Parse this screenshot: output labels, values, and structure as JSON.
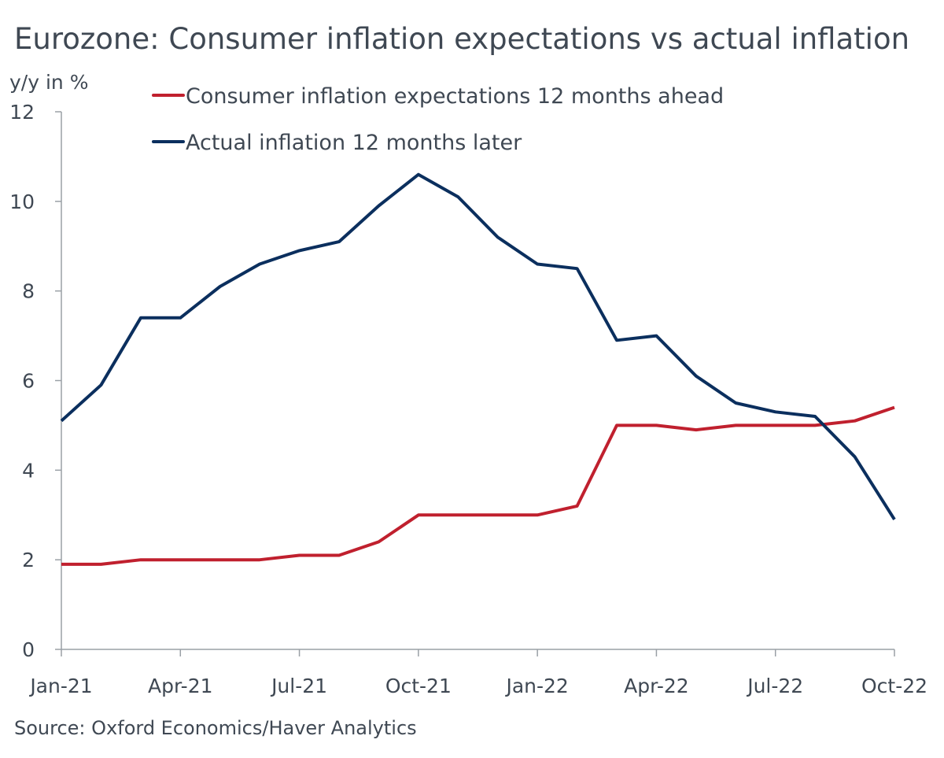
{
  "chart_data": {
    "type": "line",
    "title": "Eurozone: Consumer inflation expectations vs actual inflation",
    "ylabel": "y/y in %",
    "xlabel": "",
    "source": "Source: Oxford Economics/Haver Analytics",
    "ylim": [
      0,
      12
    ],
    "yticks": [
      "0",
      "2",
      "4",
      "6",
      "8",
      "10",
      "12"
    ],
    "x": [
      "Jan-21",
      "Feb-21",
      "Mar-21",
      "Apr-21",
      "May-21",
      "Jun-21",
      "Jul-21",
      "Aug-21",
      "Sep-21",
      "Oct-21",
      "Nov-21",
      "Dec-21",
      "Jan-22",
      "Feb-22",
      "Mar-22",
      "Apr-22",
      "May-22",
      "Jun-22",
      "Jul-22",
      "Aug-22",
      "Sep-22",
      "Oct-22"
    ],
    "xtick_labels": [
      "Jan-21",
      "Apr-21",
      "Jul-21",
      "Oct-21",
      "Jan-22",
      "Apr-22",
      "Jul-22",
      "Oct-22"
    ],
    "grid": false,
    "legend_position": "top-left",
    "series": [
      {
        "name": "Consumer inflation expectations 12 months ahead",
        "color": "#c0202e",
        "values": [
          1.9,
          1.9,
          2.0,
          2.0,
          2.0,
          2.0,
          2.1,
          2.1,
          2.4,
          3.0,
          3.0,
          3.0,
          3.0,
          3.2,
          5.0,
          5.0,
          4.9,
          5.0,
          5.0,
          5.0,
          5.1,
          5.4
        ]
      },
      {
        "name": "Actual inflation 12 months later",
        "color": "#0b2f5e",
        "values": [
          5.1,
          5.9,
          7.4,
          7.4,
          8.1,
          8.6,
          8.9,
          9.1,
          9.9,
          10.6,
          10.1,
          9.2,
          8.6,
          8.5,
          6.9,
          7.0,
          6.1,
          5.5,
          5.3,
          5.2,
          4.3,
          2.9
        ]
      }
    ]
  }
}
